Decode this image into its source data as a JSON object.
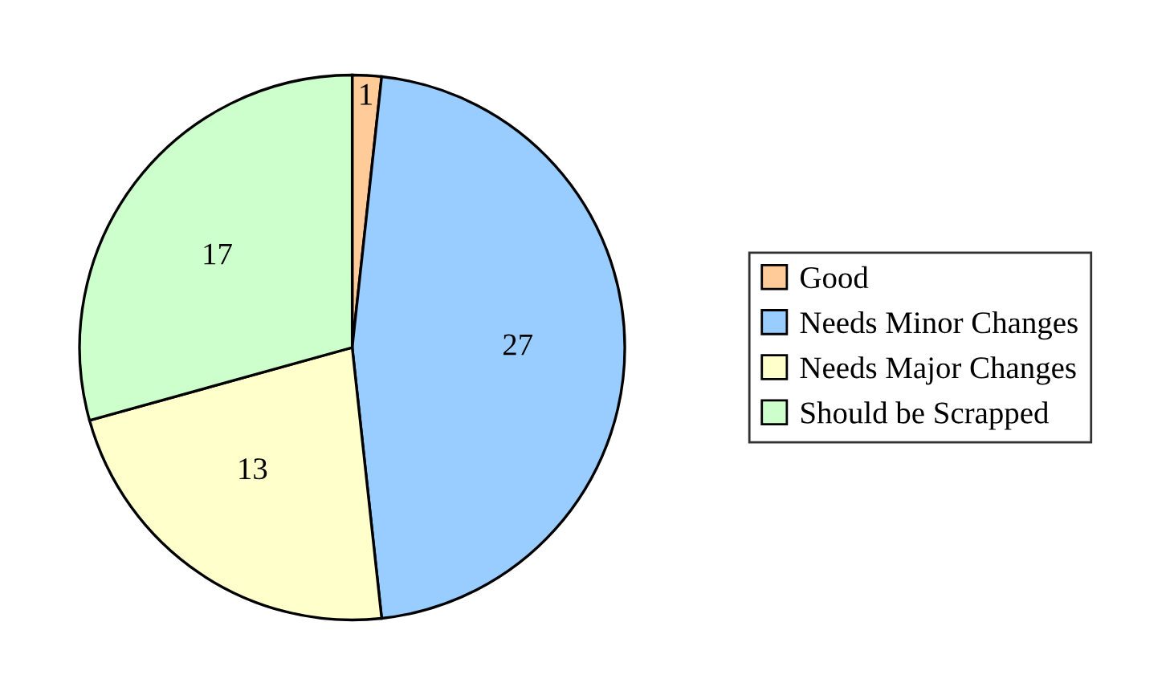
{
  "chart_data": {
    "type": "pie",
    "categories": [
      "Good",
      "Needs Minor Changes",
      "Needs Major Changes",
      "Should be Scrapped"
    ],
    "values": [
      1,
      27,
      13,
      17
    ],
    "colors": [
      "#ffcc99",
      "#99ccff",
      "#ffffcc",
      "#ccffcc"
    ],
    "data_labels": true,
    "legend": "right"
  }
}
